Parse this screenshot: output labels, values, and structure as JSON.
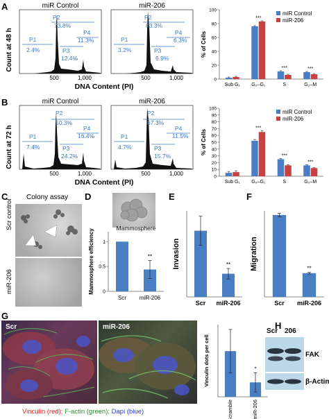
{
  "panels": {
    "A": "A",
    "B": "B",
    "C": "C",
    "D": "D",
    "E": "E",
    "F": "F",
    "G": "G",
    "H": "H"
  },
  "flow": {
    "ylabel_48": "Count at 48 h",
    "ylabel_72": "Count at 72 h",
    "xlabel": "DNA Content (PI)",
    "tick_500": "500",
    "tick_1000": "1,000",
    "title_control": "miR Control",
    "title_mir": "miR-206",
    "A_control": {
      "P1": "2.4%",
      "P2": "73.8%",
      "P3": "12.4%",
      "P4": "11.3%"
    },
    "A_mir": {
      "P1": "3.2%",
      "P2": "83.3%",
      "P3": "6.9%",
      "P4": "6.3%"
    },
    "B_control": {
      "P1": "7.4%",
      "P2": "50.3%",
      "P3": "24.2%",
      "P4": "16.4%"
    },
    "B_mir": {
      "P1": "4.7%",
      "P2": "67.3%",
      "P3": "15.7%",
      "P4": "11.5%"
    },
    "gate_labels": {
      "P1": "P1",
      "P2": "P2",
      "P3": "P3",
      "P4": "P4"
    }
  },
  "colors": {
    "control": "#4a7ec2",
    "mir": "#c8403f",
    "bar": "#4a7ec2",
    "gate": "#3d7ac4"
  },
  "chart_data": [
    {
      "id": "A_bar",
      "type": "bar",
      "categories": [
        "Sub G₁",
        "G₀–G₁",
        "S",
        "G₂–M"
      ],
      "series": [
        {
          "name": "miR Control",
          "values": [
            2,
            76,
            11,
            10
          ]
        },
        {
          "name": "miR-206",
          "values": [
            3,
            83,
            6,
            7
          ]
        }
      ],
      "errors": [
        [
          1,
          1,
          1,
          1
        ],
        [
          1,
          1,
          1,
          1
        ]
      ],
      "significance": [
        "",
        "***",
        "***",
        "***"
      ],
      "ylabel": "% of Cells",
      "ylim": [
        0,
        100
      ],
      "yticks": [
        0,
        20,
        40,
        60,
        80,
        100
      ],
      "legend": "top-right"
    },
    {
      "id": "B_bar",
      "type": "bar",
      "categories": [
        "Sub G₁",
        "G₀–G₁",
        "S",
        "G₂–M"
      ],
      "series": [
        {
          "name": "miR Control",
          "values": [
            5,
            52,
            25,
            16
          ]
        },
        {
          "name": "miR-206",
          "values": [
            6,
            65,
            16,
            12
          ]
        }
      ],
      "errors": [
        [
          2,
          2,
          1,
          1
        ],
        [
          2,
          2,
          1,
          1
        ]
      ],
      "significance": [
        "",
        "***",
        "***",
        "***"
      ],
      "ylabel": "% of Cells",
      "ylim": [
        0,
        100
      ],
      "yticks": [
        0,
        10,
        20,
        30,
        40,
        50,
        60,
        70,
        80,
        90,
        100
      ],
      "legend": "top-right"
    },
    {
      "id": "D_bar",
      "type": "bar",
      "categories": [
        "Scr",
        "miR-206"
      ],
      "values": [
        1.0,
        0.44
      ],
      "errors": [
        0,
        0.18
      ],
      "significance": [
        "",
        "**"
      ],
      "ylabel": "Mammosphere efficiency",
      "ylim": [
        0,
        1.2
      ],
      "yticks": [
        0,
        0.5,
        1
      ],
      "annotation": "Mammosphere"
    },
    {
      "id": "E_bar",
      "type": "bar",
      "categories": [
        "Scr",
        "miR-206"
      ],
      "values": [
        1.0,
        0.35
      ],
      "errors": [
        0.22,
        0.08
      ],
      "significance": [
        "",
        "**"
      ],
      "ylabel": "Invasion",
      "ylim": [
        0,
        1.3
      ]
    },
    {
      "id": "F_bar",
      "type": "bar",
      "categories": [
        "Scr",
        "miR-206"
      ],
      "values": [
        1.0,
        0.29
      ],
      "errors": [
        0.02,
        0.01
      ],
      "significance": [
        "",
        "**"
      ],
      "ylabel": "Migration",
      "ylim": [
        0,
        1.05
      ]
    },
    {
      "id": "G_bar",
      "type": "bar",
      "categories": [
        "Scramble",
        "miR-206"
      ],
      "values": [
        38,
        12
      ],
      "errors": [
        18,
        8
      ],
      "significance": [
        "",
        "*"
      ],
      "ylabel": "Vinculin dots per cell",
      "ylim": [
        0,
        60
      ]
    }
  ],
  "colony": {
    "title": "Colony assay",
    "row1": "Scr control",
    "row2": "miR-206"
  },
  "imgG": {
    "label_scr": "Scr",
    "label_mir": "miR-206",
    "legend_vinculin": "Vinculin (red);",
    "legend_factin": "F-actin (green);",
    "legend_dapi": "Dapi (blue)"
  },
  "blot": {
    "col1": "Scr",
    "col2": "206",
    "fak": "FAK",
    "actin": "β-Actin"
  }
}
